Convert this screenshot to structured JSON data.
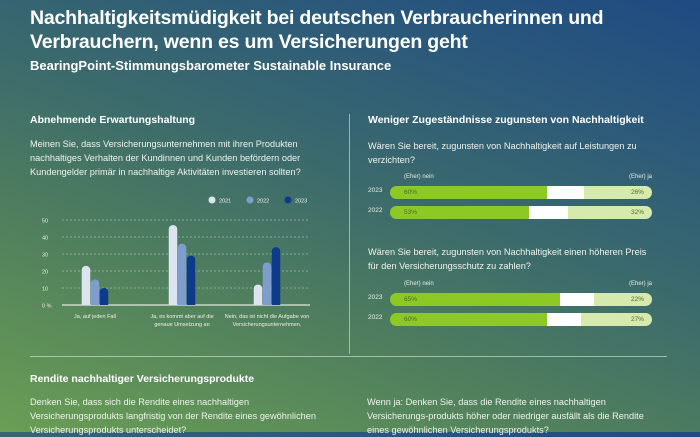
{
  "header": {
    "title": "Nachhaltigkeitsmüdigkeit bei deutschen Verbraucherinnen und Verbrauchern, wenn es um Versicherungen geht",
    "subtitle": "BearingPoint-Stimmungsbarometer Sustainable Insurance"
  },
  "left_section": {
    "title": "Abnehmende Erwartungshaltung",
    "question": "Meinen Sie, dass Versicherungsunternehmen mit ihren Produkten nachhaltiges Verhalten der Kundinnen und Kunden befördern oder Kundengelder primär in nachhaltige Aktivitäten investieren sollten?"
  },
  "right_section": {
    "title": "Weniger Zugeständnisse zugunsten von Nachhaltigkeit",
    "question1": "Wären Sie bereit, zugunsten von Nachhaltigkeit auf Leistungen zu verzichten?",
    "question2": "Wären Sie bereit, zugunsten von Nachhaltigkeit einen höheren Preis für den Versicherungsschutz zu zahlen?",
    "label_no": "(Eher) nein",
    "label_yes": "(Eher) ja"
  },
  "bottom_section": {
    "title": "Rendite nachhaltiger Versicherungsprodukte",
    "question_left": "Denken Sie, dass sich die Rendite eines nachhaltigen Versicherungsprodukts langfristig von der Rendite eines gewöhnlichen Versicherungsprodukts unterscheidet?",
    "question_right": "Wenn ja: Denken Sie, dass die Rendite eines nachhaltigen Versicherungs-produkts höher oder niedriger ausfällt als die Rendite eines gewöhnlichen Versicherungsprodukts?"
  },
  "colors": {
    "y2021": "#dde4f0",
    "y2022": "#7e9ccc",
    "y2023": "#0d3a8a",
    "no": "#8cc925",
    "neutral": "#ffffff",
    "yes": "#d6eaae"
  },
  "chart_data": [
    {
      "type": "bar",
      "title": "Abnehmende Erwartungshaltung",
      "categories": [
        "Ja, auf jeden Fall",
        "Ja, es kommt aber auf die genaue Umsetzung an",
        "Nein, das ist nicht die Aufgabe von Versicherungsunternehmen."
      ],
      "category_lines": [
        [
          "Ja, auf jeden Fall"
        ],
        [
          "Ja, es kommt aber auf die",
          "genaue Umsetzung an"
        ],
        [
          "Nein, das ist nicht die Aufgabe von",
          "Versicherungsunternehmen."
        ]
      ],
      "series": [
        {
          "name": "2021",
          "values": [
            23,
            47,
            12
          ]
        },
        {
          "name": "2022",
          "values": [
            15,
            36,
            25
          ]
        },
        {
          "name": "2023",
          "values": [
            10,
            29,
            34
          ]
        }
      ],
      "ylim": [
        0,
        50
      ],
      "yticks": [
        0,
        10,
        20,
        30,
        40,
        50
      ],
      "ytick_labels": [
        "0 %",
        "10",
        "20",
        "30",
        "40",
        "50"
      ],
      "grid": true,
      "legend": "top-right",
      "xlabel": "",
      "ylabel": ""
    },
    {
      "type": "bar",
      "subtype": "stacked-horizontal",
      "title": "Wären Sie bereit, zugunsten von Nachhaltigkeit auf Leistungen zu verzichten?",
      "categories": [
        "2023",
        "2022"
      ],
      "series": [
        {
          "name": "(Eher) nein",
          "values": [
            60,
            53
          ]
        },
        {
          "name": "Neutral",
          "values": [
            14,
            15
          ]
        },
        {
          "name": "(Eher) ja",
          "values": [
            26,
            32
          ]
        }
      ],
      "labels": {
        "no": [
          "60%",
          "53%"
        ],
        "yes": [
          "26%",
          "32%"
        ]
      }
    },
    {
      "type": "bar",
      "subtype": "stacked-horizontal",
      "title": "Wären Sie bereit, zugunsten von Nachhaltigkeit einen höheren Preis für den Versicherungsschutz zu zahlen?",
      "categories": [
        "2023",
        "2022"
      ],
      "series": [
        {
          "name": "(Eher) nein",
          "values": [
            65,
            60
          ]
        },
        {
          "name": "Neutral",
          "values": [
            13,
            13
          ]
        },
        {
          "name": "(Eher) ja",
          "values": [
            22,
            27
          ]
        }
      ],
      "labels": {
        "no": [
          "65%",
          "60%"
        ],
        "yes": [
          "22%",
          "27%"
        ]
      }
    }
  ]
}
